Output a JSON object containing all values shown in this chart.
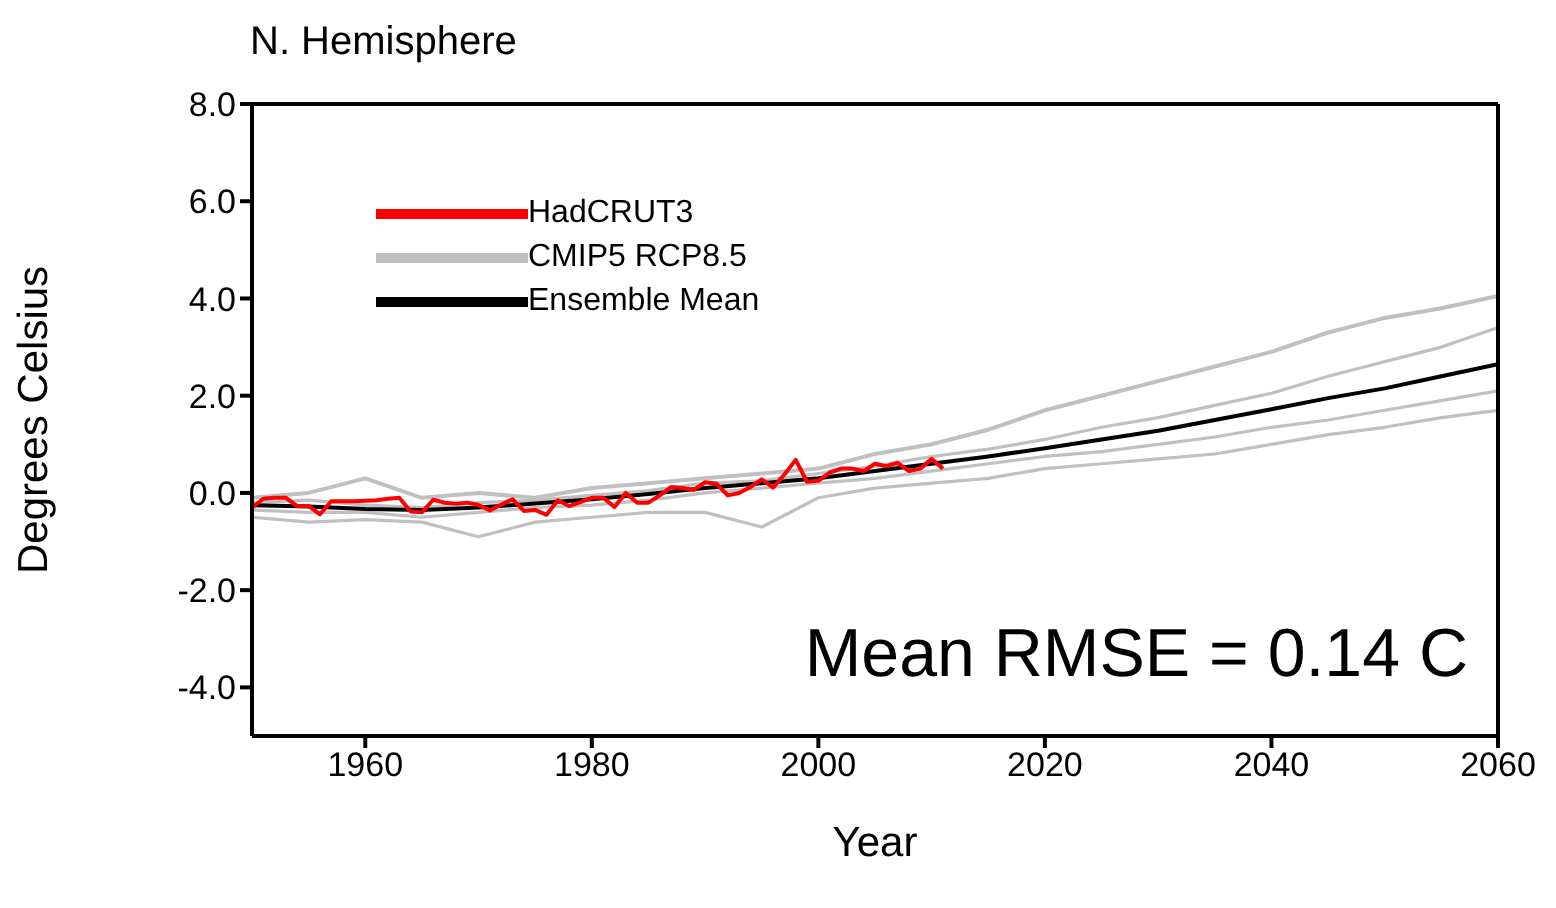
{
  "chart_data": {
    "type": "line",
    "title": "N. Hemisphere",
    "xlabel": "Year",
    "ylabel": "Degrees Celsius",
    "xlim": [
      1950,
      2060
    ],
    "xticks": [
      1960,
      1980,
      2000,
      2020,
      2040,
      2060
    ],
    "ylim": [
      -5,
      8
    ],
    "yticks": [
      {
        "value": -4,
        "label": "-4.0"
      },
      {
        "value": -2,
        "label": "-2.0"
      },
      {
        "value": 0,
        "label": "0.0"
      },
      {
        "value": 2,
        "label": "2.0"
      },
      {
        "value": 4,
        "label": "4.0"
      },
      {
        "value": 6,
        "label": "6.0"
      },
      {
        "value": 8,
        "label": "8.0"
      }
    ],
    "legend": "top left",
    "marker": "none",
    "line_style": "solid",
    "annotations": [
      "Mean RMSE = 0.14 C"
    ],
    "series": [
      {
        "name": "HadCRUT3",
        "color": "#ff0000",
        "x": [
          1950,
          1951,
          1952,
          1953,
          1954,
          1955,
          1956,
          1957,
          1958,
          1959,
          1960,
          1961,
          1962,
          1963,
          1964,
          1965,
          1966,
          1967,
          1968,
          1969,
          1970,
          1971,
          1972,
          1973,
          1974,
          1975,
          1976,
          1977,
          1978,
          1979,
          1980,
          1981,
          1982,
          1983,
          1984,
          1985,
          1986,
          1987,
          1988,
          1989,
          1990,
          1991,
          1992,
          1993,
          1994,
          1995,
          1996,
          1997,
          1998,
          1999,
          2000,
          2001,
          2002,
          2003,
          2004,
          2005,
          2006,
          2007,
          2008,
          2009,
          2010,
          2011
        ],
        "values": [
          -0.3,
          -0.12,
          -0.1,
          -0.1,
          -0.27,
          -0.27,
          -0.44,
          -0.17,
          -0.17,
          -0.17,
          -0.16,
          -0.15,
          -0.12,
          -0.1,
          -0.38,
          -0.4,
          -0.14,
          -0.2,
          -0.22,
          -0.2,
          -0.25,
          -0.36,
          -0.24,
          -0.13,
          -0.37,
          -0.35,
          -0.45,
          -0.15,
          -0.27,
          -0.19,
          -0.1,
          -0.1,
          -0.29,
          0.0,
          -0.2,
          -0.2,
          -0.05,
          0.12,
          0.1,
          0.06,
          0.22,
          0.19,
          -0.05,
          0.0,
          0.12,
          0.28,
          0.11,
          0.38,
          0.68,
          0.23,
          0.25,
          0.42,
          0.5,
          0.5,
          0.45,
          0.6,
          0.55,
          0.62,
          0.45,
          0.5,
          0.7,
          0.5
        ]
      },
      {
        "name": "CMIP5 RCP8.5",
        "color": "#c0c0c0",
        "x": [
          1950,
          1955,
          1960,
          1965,
          1970,
          1975,
          1980,
          1985,
          1990,
          1995,
          2000,
          2005,
          2010,
          2015,
          2020,
          2025,
          2030,
          2035,
          2040,
          2045,
          2050,
          2055,
          2060
        ],
        "values": [
          -0.1,
          0.0,
          0.3,
          -0.1,
          0.0,
          -0.1,
          0.1,
          0.2,
          0.3,
          0.4,
          0.5,
          0.8,
          1.0,
          1.3,
          1.7,
          2.0,
          2.3,
          2.6,
          2.9,
          3.3,
          3.6,
          3.8,
          4.05
        ]
      },
      {
        "color": "#c0c0c0",
        "x": [
          1950,
          1955,
          1960,
          1965,
          1970,
          1975,
          1980,
          1985,
          1990,
          1995,
          2000,
          2005,
          2010,
          2015,
          2020,
          2025,
          2030,
          2035,
          2040,
          2045,
          2050,
          2055,
          2060
        ],
        "values": [
          -0.5,
          -0.6,
          -0.55,
          -0.6,
          -0.9,
          -0.6,
          -0.5,
          -0.4,
          -0.4,
          -0.7,
          -0.1,
          0.1,
          0.2,
          0.3,
          0.5,
          0.6,
          0.7,
          0.8,
          1.0,
          1.2,
          1.35,
          1.55,
          1.7
        ]
      },
      {
        "color": "#c0c0c0",
        "x": [
          1950,
          1955,
          1960,
          1965,
          1970,
          1975,
          1980,
          1985,
          1990,
          1995,
          2000,
          2005,
          2010,
          2015,
          2020,
          2025,
          2030,
          2035,
          2040,
          2045,
          2050,
          2055,
          2060
        ],
        "values": [
          -0.2,
          -0.15,
          -0.25,
          -0.3,
          -0.2,
          -0.15,
          -0.05,
          0.05,
          0.2,
          0.25,
          0.4,
          0.55,
          0.75,
          0.9,
          1.1,
          1.35,
          1.55,
          1.8,
          2.05,
          2.4,
          2.7,
          3.0,
          3.4
        ]
      },
      {
        "color": "#c0c0c0",
        "x": [
          1950,
          1955,
          1960,
          1965,
          1970,
          1975,
          1980,
          1985,
          1990,
          1995,
          2000,
          2005,
          2010,
          2015,
          2020,
          2025,
          2030,
          2035,
          2040,
          2045,
          2050,
          2055,
          2060
        ],
        "values": [
          -0.35,
          -0.4,
          -0.4,
          -0.5,
          -0.4,
          -0.3,
          -0.25,
          -0.15,
          0.0,
          0.1,
          0.2,
          0.3,
          0.45,
          0.6,
          0.75,
          0.85,
          1.0,
          1.15,
          1.35,
          1.5,
          1.7,
          1.9,
          2.1
        ]
      },
      {
        "name": "Ensemble Mean",
        "color": "#000000",
        "x": [
          1950,
          1955,
          1960,
          1965,
          1970,
          1975,
          1980,
          1985,
          1990,
          1995,
          2000,
          2005,
          2010,
          2015,
          2020,
          2025,
          2030,
          2035,
          2040,
          2045,
          2050,
          2055,
          2060
        ],
        "values": [
          -0.25,
          -0.28,
          -0.33,
          -0.35,
          -0.3,
          -0.22,
          -0.13,
          -0.02,
          0.1,
          0.2,
          0.3,
          0.45,
          0.6,
          0.75,
          0.92,
          1.1,
          1.28,
          1.5,
          1.72,
          1.95,
          2.15,
          2.4,
          2.65
        ]
      }
    ]
  }
}
